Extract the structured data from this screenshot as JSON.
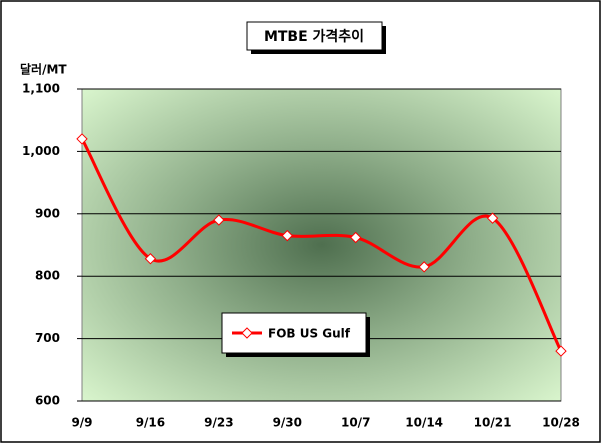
{
  "chart_data": {
    "type": "line",
    "title": "MTBE 가격추이",
    "y_label": "달러/MT",
    "categories": [
      "9/9",
      "9/16",
      "9/23",
      "9/30",
      "10/7",
      "10/14",
      "10/21",
      "10/28"
    ],
    "series": [
      {
        "name": "FOB US Gulf",
        "color": "#ff0000",
        "values": [
          1020,
          828,
          890,
          865,
          862,
          815,
          893,
          680
        ]
      }
    ],
    "ylim": [
      600,
      1100
    ],
    "yticks": [
      600,
      700,
      800,
      900,
      {
        "value": 1000,
        "label": "1,000"
      },
      {
        "value": 1100,
        "label": "1,100"
      }
    ],
    "grid": true
  }
}
